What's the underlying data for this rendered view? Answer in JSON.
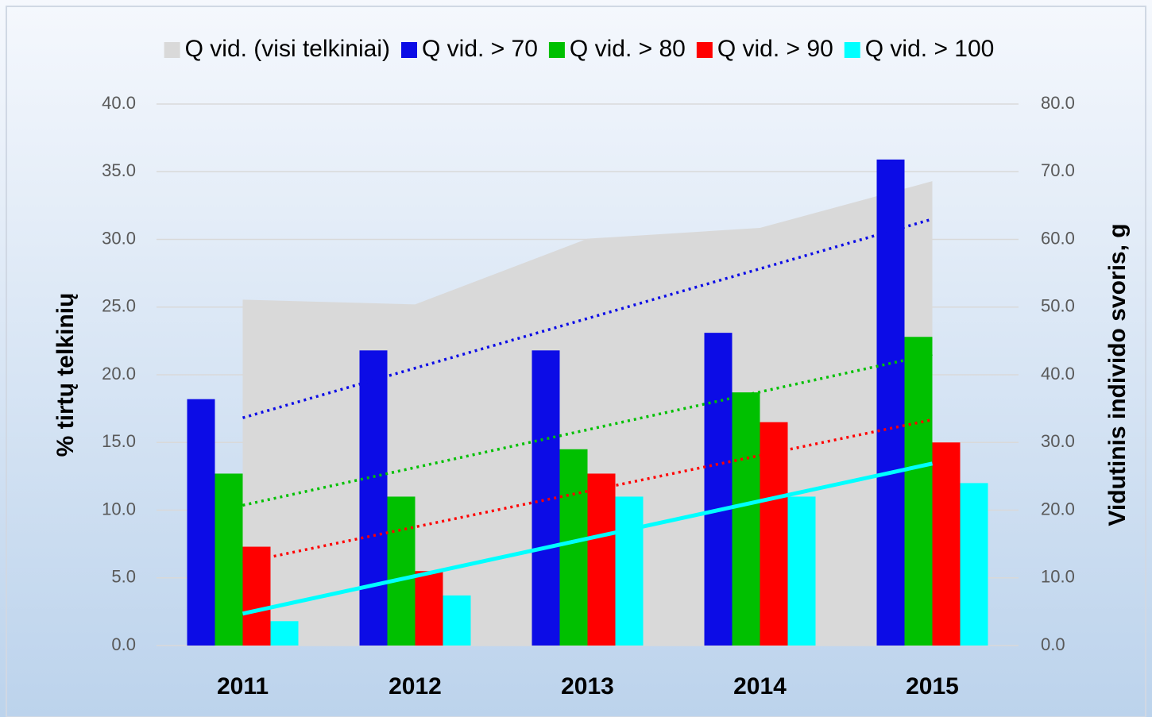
{
  "chart_data": {
    "type": "bar",
    "categories": [
      "2011",
      "2012",
      "2013",
      "2014",
      "2015"
    ],
    "series": [
      {
        "name": "Q vid. (visi telkiniai)",
        "color": "#d9d9d9",
        "type": "area",
        "axis": "y2",
        "values": [
          51.1,
          50.4,
          60.1,
          61.7,
          68.6
        ]
      },
      {
        "name": "Q vid. > 70",
        "color": "#0c0ce6",
        "values": [
          18.2,
          21.8,
          21.8,
          23.1,
          35.9
        ],
        "trendline": "dotted"
      },
      {
        "name": "Q vid. > 80",
        "color": "#00c000",
        "values": [
          12.7,
          11.0,
          14.5,
          18.7,
          22.8
        ],
        "trendline": "dotted"
      },
      {
        "name": "Q vid. > 90",
        "color": "#ff0000",
        "values": [
          7.3,
          5.5,
          12.7,
          16.5,
          15.0
        ],
        "trendline": "dotted"
      },
      {
        "name": "Q vid. > 100",
        "color": "#00ffff",
        "values": [
          1.8,
          3.7,
          11.0,
          11.0,
          12.0
        ],
        "trendline": "solid"
      }
    ],
    "y_label": "% tirtų telkinių",
    "y2_label": "Vidutinis individo svoris, g",
    "ylim": [
      0,
      40
    ],
    "yticks": [
      {
        "value": 0,
        "label": "0.0"
      },
      {
        "value": 5,
        "label": "5.0"
      },
      {
        "value": 10,
        "label": "10.0"
      },
      {
        "value": 15,
        "label": "15.0"
      },
      {
        "value": 20,
        "label": "20.0"
      },
      {
        "value": 25,
        "label": "25.0"
      },
      {
        "value": 30,
        "label": "30.0"
      },
      {
        "value": 35,
        "label": "35.0"
      },
      {
        "value": 40,
        "label": "40.0"
      }
    ],
    "y2lim": [
      0,
      80
    ],
    "y2ticks": [
      {
        "value": 0,
        "label": "0.0"
      },
      {
        "value": 10,
        "label": "10.0"
      },
      {
        "value": 20,
        "label": "20.0"
      },
      {
        "value": 30,
        "label": "30.0"
      },
      {
        "value": 40,
        "label": "40.0"
      },
      {
        "value": 50,
        "label": "50.0"
      },
      {
        "value": 60,
        "label": "60.0"
      },
      {
        "value": 70,
        "label": "70.0"
      },
      {
        "value": 80,
        "label": "80.0"
      }
    ],
    "grid": true,
    "legend": "top"
  }
}
